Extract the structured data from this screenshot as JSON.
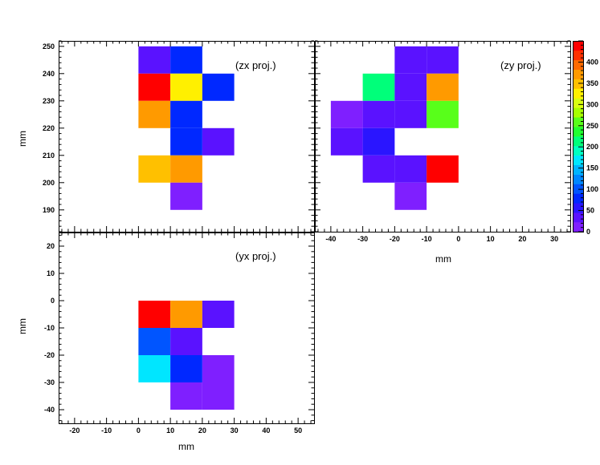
{
  "chart_data": {
    "type": "heatmap",
    "color_palette": "rainbow",
    "colorbar": {
      "range": [
        0,
        450
      ],
      "tick_labels": [
        "0",
        "50",
        "100",
        "150",
        "200",
        "250",
        "300",
        "350",
        "400"
      ],
      "tick_values": [
        0,
        50,
        100,
        150,
        200,
        250,
        300,
        350,
        400
      ]
    },
    "panels": [
      {
        "id": "zx",
        "title": "(zx proj.)",
        "xlabel": "",
        "ylabel": "mm",
        "xlim": [
          -25,
          55
        ],
        "ylim": [
          182,
          252
        ],
        "show_x_labels": false,
        "x_ticks": [],
        "y_ticks": [
          190,
          200,
          210,
          220,
          230,
          240,
          250
        ],
        "y_tick_labels": [
          "190",
          "200",
          "210",
          "220",
          "230",
          "240",
          "250"
        ],
        "bin_size": [
          10,
          10
        ],
        "cells": [
          {
            "x": 0,
            "y": 240,
            "value": 40
          },
          {
            "x": 10,
            "y": 240,
            "value": 80
          },
          {
            "x": 0,
            "y": 230,
            "value": 440
          },
          {
            "x": 10,
            "y": 230,
            "value": 320
          },
          {
            "x": 20,
            "y": 230,
            "value": 80
          },
          {
            "x": 0,
            "y": 220,
            "value": 380
          },
          {
            "x": 10,
            "y": 220,
            "value": 80
          },
          {
            "x": 10,
            "y": 210,
            "value": 80
          },
          {
            "x": 20,
            "y": 210,
            "value": 40
          },
          {
            "x": 0,
            "y": 200,
            "value": 340
          },
          {
            "x": 10,
            "y": 200,
            "value": 380
          },
          {
            "x": 10,
            "y": 190,
            "value": 15
          }
        ]
      },
      {
        "id": "zy",
        "title": "(zy proj.)",
        "xlabel": "mm",
        "ylabel": "",
        "xlim": [
          -45,
          35
        ],
        "ylim": [
          182,
          252
        ],
        "show_y_labels": false,
        "x_ticks": [
          -40,
          -30,
          -20,
          -10,
          0,
          10,
          20,
          30
        ],
        "x_tick_labels": [
          "-40",
          "-30",
          "-20",
          "-10",
          "0",
          "10",
          "20",
          "30"
        ],
        "y_ticks": [],
        "bin_size": [
          10,
          10
        ],
        "cells": [
          {
            "x": -20,
            "y": 240,
            "value": 40
          },
          {
            "x": -10,
            "y": 240,
            "value": 40
          },
          {
            "x": -30,
            "y": 230,
            "value": 220
          },
          {
            "x": -20,
            "y": 230,
            "value": 30
          },
          {
            "x": -10,
            "y": 230,
            "value": 370
          },
          {
            "x": -40,
            "y": 220,
            "value": 15
          },
          {
            "x": -30,
            "y": 220,
            "value": 30
          },
          {
            "x": -20,
            "y": 220,
            "value": 30
          },
          {
            "x": -10,
            "y": 220,
            "value": 250
          },
          {
            "x": -40,
            "y": 210,
            "value": 30
          },
          {
            "x": -30,
            "y": 210,
            "value": 55
          },
          {
            "x": -30,
            "y": 200,
            "value": 30
          },
          {
            "x": -20,
            "y": 200,
            "value": 30
          },
          {
            "x": -10,
            "y": 200,
            "value": 440
          },
          {
            "x": -20,
            "y": 190,
            "value": 15
          }
        ]
      },
      {
        "id": "yx",
        "title": "(yx proj.)",
        "xlabel": "mm",
        "ylabel": "mm",
        "xlim": [
          -25,
          55
        ],
        "ylim": [
          -45,
          25
        ],
        "x_ticks": [
          -20,
          -10,
          0,
          10,
          20,
          30,
          40,
          50
        ],
        "x_tick_labels": [
          "-20",
          "-10",
          "0",
          "10",
          "20",
          "30",
          "40",
          "50"
        ],
        "y_ticks": [
          -40,
          -30,
          -20,
          -10,
          0,
          10,
          20
        ],
        "y_tick_labels": [
          "-40",
          "-30",
          "-20",
          "-10",
          "0",
          "10",
          "20"
        ],
        "bin_size": [
          10,
          10
        ],
        "cells": [
          {
            "x": 0,
            "y": -10,
            "value": 440
          },
          {
            "x": 10,
            "y": -10,
            "value": 380
          },
          {
            "x": 20,
            "y": -10,
            "value": 30
          },
          {
            "x": 0,
            "y": -20,
            "value": 105
          },
          {
            "x": 10,
            "y": -20,
            "value": 30
          },
          {
            "x": 0,
            "y": -30,
            "value": 160
          },
          {
            "x": 10,
            "y": -30,
            "value": 80
          },
          {
            "x": 20,
            "y": -30,
            "value": 15
          },
          {
            "x": 10,
            "y": -40,
            "value": 15
          },
          {
            "x": 20,
            "y": -40,
            "value": 15
          }
        ]
      }
    ]
  }
}
